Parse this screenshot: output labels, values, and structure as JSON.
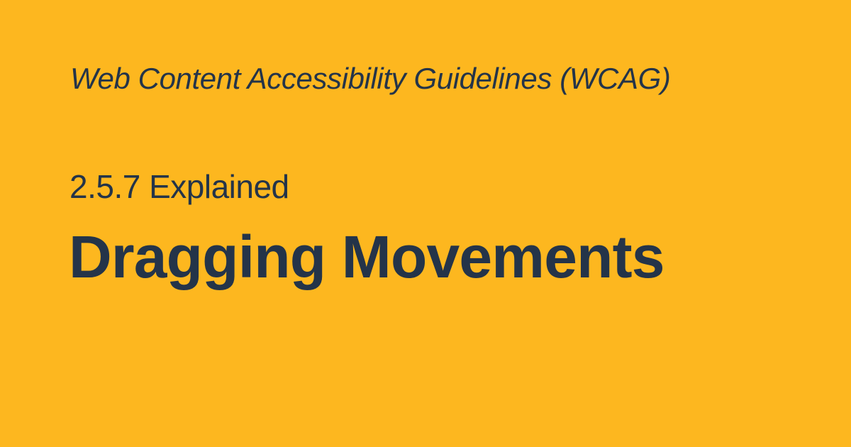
{
  "header": {
    "eyebrow": "Web Content Accessibility Guidelines (WCAG)"
  },
  "main": {
    "subtitle": "2.5.7 Explained",
    "title": "Dragging Movements"
  },
  "colors": {
    "background": "#FDB71F",
    "text": "#243449"
  }
}
